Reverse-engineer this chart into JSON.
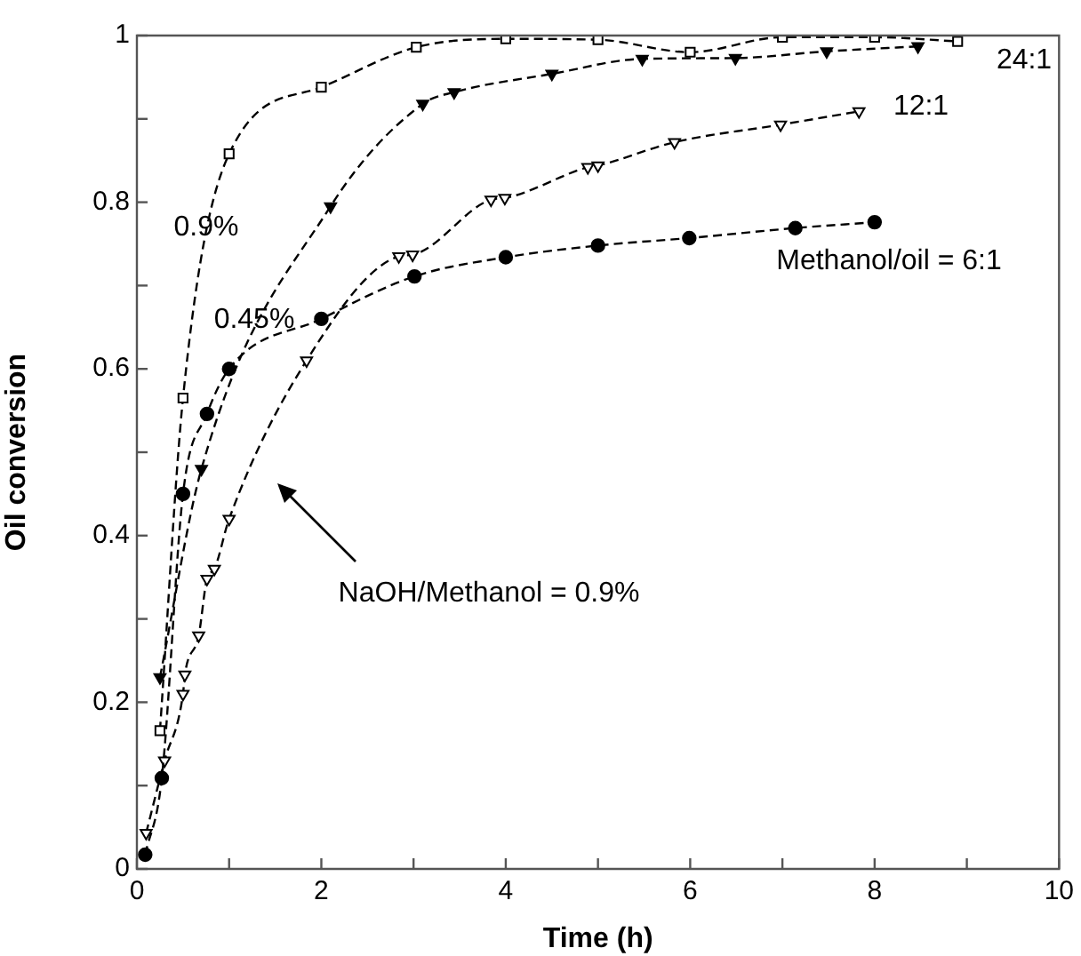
{
  "chart_data": {
    "type": "line",
    "xlabel": "Time (h)",
    "ylabel": "Oil conversion",
    "xlim": [
      0,
      10
    ],
    "ylim": [
      0,
      1
    ],
    "xticks": [
      0,
      {
        "value": 1,
        "label": null
      },
      2,
      {
        "value": 3,
        "label": null
      },
      4,
      {
        "value": 5,
        "label": null
      },
      6,
      {
        "value": 7,
        "label": null
      },
      8,
      {
        "value": 9,
        "label": null
      },
      10
    ],
    "yticks": [
      0,
      {
        "value": 0.1,
        "label": null
      },
      0.2,
      {
        "value": 0.3,
        "label": null
      },
      0.4,
      {
        "value": 0.5,
        "label": null
      },
      0.6,
      {
        "value": 0.7,
        "label": null
      },
      0.8,
      {
        "value": 0.9,
        "label": null
      },
      1
    ],
    "grid": false,
    "legend": false,
    "line_style": "dashed",
    "series": [
      {
        "color": "#000000",
        "marker": "square",
        "x": [
          0.25,
          0.5,
          1.0,
          2.0,
          3.03,
          4.0,
          5.0,
          6.0,
          7.0,
          8.0,
          8.9
        ],
        "values": [
          0.166,
          0.565,
          0.858,
          0.938,
          0.986,
          0.996,
          0.995,
          0.98,
          0.998,
          0.998,
          0.993
        ]
      },
      {
        "color": "#000000",
        "marker": "triangle",
        "x": [
          0.25,
          0.7,
          2.1,
          3.1,
          3.44,
          4.5,
          5.48,
          6.49,
          7.48,
          8.47
        ],
        "values": [
          0.23,
          0.48,
          0.795,
          0.918,
          0.932,
          0.954,
          0.972,
          0.973,
          0.981,
          0.987
        ]
      },
      {
        "color": "#000000",
        "marker": "triangle",
        "x": [
          0.1,
          0.3,
          0.5,
          0.52,
          0.67,
          0.76,
          0.84,
          1.0,
          1.84,
          2.84,
          2.99,
          3.84,
          3.99,
          4.89,
          5.0,
          5.83,
          6.98,
          7.83
        ],
        "values": [
          0.043,
          0.13,
          0.21,
          0.233,
          0.28,
          0.348,
          0.36,
          0.42,
          0.61,
          0.735,
          0.737,
          0.803,
          0.805,
          0.842,
          0.844,
          0.872,
          0.893,
          0.909
        ]
      },
      {
        "color": "#000000",
        "marker": "circle",
        "x": [
          0.09,
          0.27,
          0.5,
          0.76,
          1.0,
          2.0,
          3.01,
          4.0,
          5.0,
          5.99,
          7.14,
          8.0
        ],
        "values": [
          0.017,
          0.109,
          0.45,
          0.546,
          0.6,
          0.66,
          0.711,
          0.734,
          0.748,
          0.757,
          0.769,
          0.776
        ]
      }
    ],
    "annotations": [
      "24:1",
      "12:1",
      "Methanol/oil = 6:1",
      "0.9%",
      "0.45%",
      "NaOH/Methanol = 0.9%"
    ]
  }
}
